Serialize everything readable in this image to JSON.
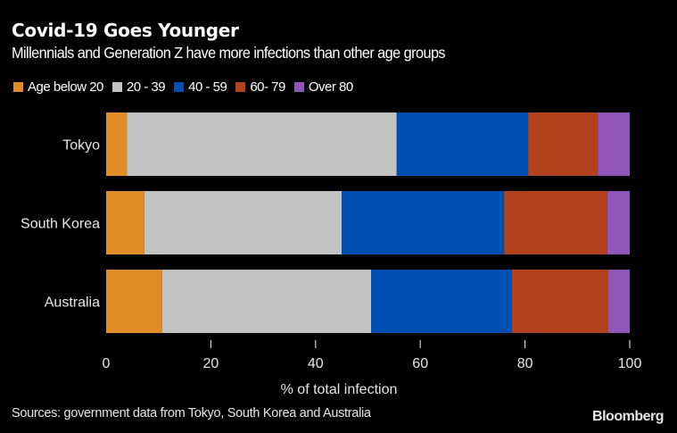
{
  "chart_data": {
    "type": "bar",
    "orientation": "horizontal",
    "stacked": true,
    "title": "Covid-19 Goes Younger",
    "subtitle": "Millennials and Generation Z have more infections than other age groups",
    "xlabel": "% of total infection",
    "ylabel": "",
    "xlim": [
      0,
      100
    ],
    "xticks": [
      "0",
      "20",
      "40",
      "60",
      "80",
      "100"
    ],
    "grid": false,
    "legend_position": "top-left",
    "categories": [
      "Tokyo",
      "South Korea",
      "Australia"
    ],
    "series": [
      {
        "name": "Age below 20",
        "color": "#e08c27",
        "values": [
          4.0,
          7.3,
          10.7
        ]
      },
      {
        "name": "20 - 39",
        "color": "#c2c2c2",
        "values": [
          51.5,
          37.7,
          39.9
        ]
      },
      {
        "name": "40 - 59",
        "color": "#0050b4",
        "values": [
          25.1,
          31.0,
          26.9
        ]
      },
      {
        "name": "60- 79",
        "color": "#b2431e",
        "values": [
          13.3,
          19.7,
          18.4
        ]
      },
      {
        "name": "Over 80",
        "color": "#9154b9",
        "values": [
          6.1,
          4.3,
          4.1
        ]
      }
    ]
  },
  "footer": {
    "source": "Sources: government data from Tokyo, South Korea and Australia",
    "brand": "Bloomberg"
  }
}
